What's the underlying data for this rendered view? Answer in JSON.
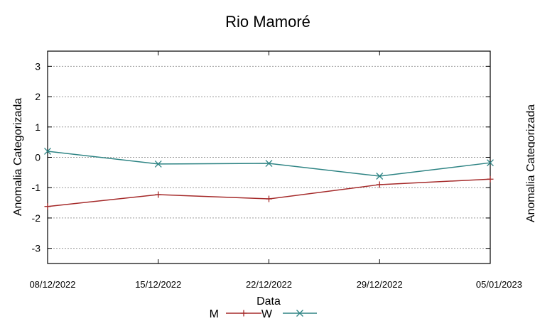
{
  "chart_data": {
    "type": "line",
    "title": "Rio Mamoré",
    "xlabel": "Data",
    "ylabel": "Anomalia Categorizada",
    "right_ylabel": "Anomalia Categorizada",
    "x": [
      "08/12/2022",
      "15/12/2022",
      "22/12/2022",
      "29/12/2022",
      "05/01/2023"
    ],
    "ylim": [
      -3.5,
      3.5
    ],
    "yticks": [
      3,
      2,
      1,
      0,
      -1,
      -2,
      -3
    ],
    "ytick_labels": [
      "3",
      "2",
      "1",
      "0",
      "-1",
      "-2",
      "-3"
    ],
    "grid": true,
    "legend_position": "bottom-center",
    "series": [
      {
        "name": "M",
        "color": "#a52a2a",
        "marker": "plus",
        "values": [
          -1.62,
          -1.23,
          -1.37,
          -0.9,
          -0.72
        ]
      },
      {
        "name": "W",
        "color": "#2e8484",
        "marker": "cross",
        "values": [
          0.2,
          -0.22,
          -0.2,
          -0.62,
          -0.18
        ]
      }
    ]
  }
}
